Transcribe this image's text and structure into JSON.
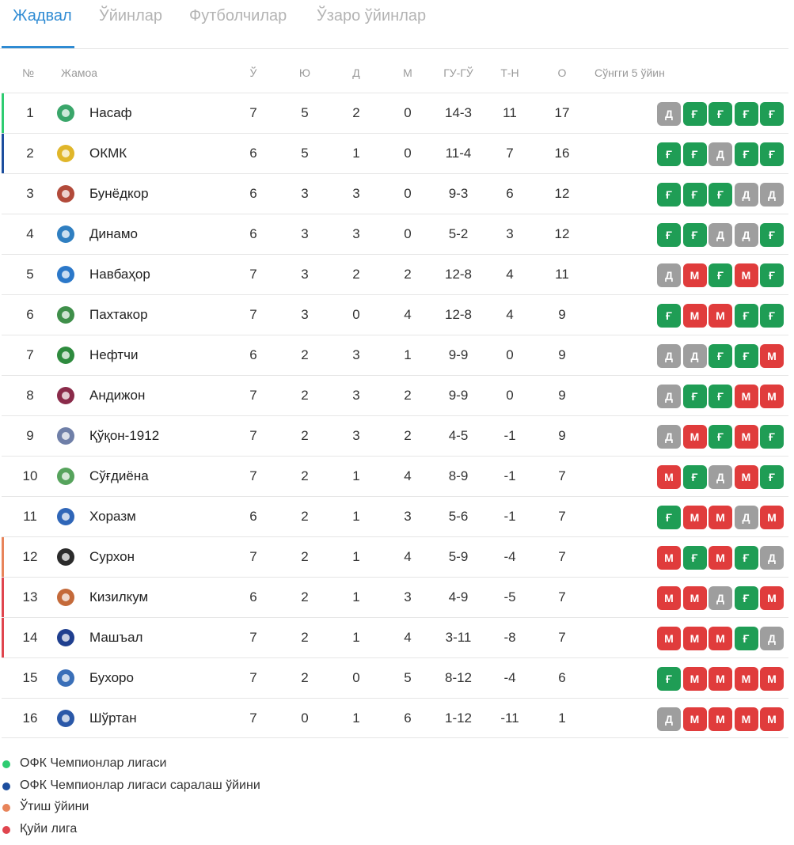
{
  "tabs": [
    {
      "label": "Жадвал",
      "active": true
    },
    {
      "label": "Ўйинлар",
      "active": false
    },
    {
      "label": "Футболчилар",
      "active": false
    },
    {
      "label": "Ўзаро ўйинлар",
      "active": false
    }
  ],
  "headers": {
    "pos": "№",
    "team": "Жамоа",
    "played": "Ў",
    "won": "Ю",
    "drawn": "Д",
    "lost": "М",
    "goals": "ГУ-ГЎ",
    "diff": "Т-Н",
    "points": "О",
    "form": "Сўнгги 5 ўйин"
  },
  "colors": {
    "win": "#1f9d55",
    "draw": "#9e9e9e",
    "loss": "#e03c3c",
    "cl": "#2ecc71",
    "cl_qual": "#1c4e9e",
    "playoff": "#e8845a",
    "relegation": "#e0454e",
    "accent": "#2f8bd3"
  },
  "form_letters": {
    "W": "Ғ",
    "D": "Д",
    "L": "М"
  },
  "rows": [
    {
      "pos": "1",
      "team": "Насаф",
      "p": "7",
      "w": "5",
      "d": "2",
      "l": "0",
      "gf": "14-3",
      "gd": "11",
      "pts": "17",
      "zone": "cl",
      "logo_color": "#3aa66a",
      "form": [
        "D",
        "W",
        "W",
        "W",
        "W"
      ]
    },
    {
      "pos": "2",
      "team": "ОКМК",
      "p": "6",
      "w": "5",
      "d": "1",
      "l": "0",
      "gf": "11-4",
      "gd": "7",
      "pts": "16",
      "zone": "cl_qual",
      "logo_color": "#e0b62a",
      "form": [
        "W",
        "W",
        "D",
        "W",
        "W"
      ]
    },
    {
      "pos": "3",
      "team": "Бунёдкор",
      "p": "6",
      "w": "3",
      "d": "3",
      "l": "0",
      "gf": "9-3",
      "gd": "6",
      "pts": "12",
      "zone": "",
      "logo_color": "#b24a3a",
      "form": [
        "W",
        "W",
        "W",
        "D",
        "D"
      ]
    },
    {
      "pos": "4",
      "team": "Динамо",
      "p": "6",
      "w": "3",
      "d": "3",
      "l": "0",
      "gf": "5-2",
      "gd": "3",
      "pts": "12",
      "zone": "",
      "logo_color": "#2f7fc1",
      "form": [
        "W",
        "W",
        "D",
        "D",
        "W"
      ]
    },
    {
      "pos": "5",
      "team": "Навбаҳор",
      "p": "7",
      "w": "3",
      "d": "2",
      "l": "2",
      "gf": "12-8",
      "gd": "4",
      "pts": "11",
      "zone": "",
      "logo_color": "#2b78c9",
      "form": [
        "D",
        "L",
        "W",
        "L",
        "W"
      ]
    },
    {
      "pos": "6",
      "team": "Пахтакор",
      "p": "7",
      "w": "3",
      "d": "0",
      "l": "4",
      "gf": "12-8",
      "gd": "4",
      "pts": "9",
      "zone": "",
      "logo_color": "#3f8f4a",
      "form": [
        "W",
        "L",
        "L",
        "W",
        "W"
      ]
    },
    {
      "pos": "7",
      "team": "Нефтчи",
      "p": "6",
      "w": "2",
      "d": "3",
      "l": "1",
      "gf": "9-9",
      "gd": "0",
      "pts": "9",
      "zone": "",
      "logo_color": "#2e8b3e",
      "form": [
        "D",
        "D",
        "W",
        "W",
        "L"
      ]
    },
    {
      "pos": "8",
      "team": "Андижон",
      "p": "7",
      "w": "2",
      "d": "3",
      "l": "2",
      "gf": "9-9",
      "gd": "0",
      "pts": "9",
      "zone": "",
      "logo_color": "#8a2b4a",
      "form": [
        "D",
        "W",
        "W",
        "L",
        "L"
      ]
    },
    {
      "pos": "9",
      "team": "Қўқон-1912",
      "p": "7",
      "w": "2",
      "d": "3",
      "l": "2",
      "gf": "4-5",
      "gd": "-1",
      "pts": "9",
      "zone": "",
      "logo_color": "#6f7fa8",
      "form": [
        "D",
        "L",
        "W",
        "L",
        "W"
      ]
    },
    {
      "pos": "10",
      "team": "Сўғдиёна",
      "p": "7",
      "w": "2",
      "d": "1",
      "l": "4",
      "gf": "8-9",
      "gd": "-1",
      "pts": "7",
      "zone": "",
      "logo_color": "#56a35c",
      "form": [
        "L",
        "W",
        "D",
        "L",
        "W"
      ]
    },
    {
      "pos": "11",
      "team": "Хоразм",
      "p": "6",
      "w": "2",
      "d": "1",
      "l": "3",
      "gf": "5-6",
      "gd": "-1",
      "pts": "7",
      "zone": "",
      "logo_color": "#2f66b8",
      "form": [
        "W",
        "L",
        "L",
        "D",
        "L"
      ]
    },
    {
      "pos": "12",
      "team": "Сурхон",
      "p": "7",
      "w": "2",
      "d": "1",
      "l": "4",
      "gf": "5-9",
      "gd": "-4",
      "pts": "7",
      "zone": "playoff",
      "logo_color": "#2b2b2b",
      "form": [
        "L",
        "W",
        "L",
        "W",
        "D"
      ]
    },
    {
      "pos": "13",
      "team": "Кизилкум",
      "p": "6",
      "w": "2",
      "d": "1",
      "l": "3",
      "gf": "4-9",
      "gd": "-5",
      "pts": "7",
      "zone": "relegation",
      "logo_color": "#c46a3a",
      "form": [
        "L",
        "L",
        "D",
        "W",
        "L"
      ]
    },
    {
      "pos": "14",
      "team": "Машъал",
      "p": "7",
      "w": "2",
      "d": "1",
      "l": "4",
      "gf": "3-11",
      "gd": "-8",
      "pts": "7",
      "zone": "relegation",
      "logo_color": "#1f3f8f",
      "form": [
        "L",
        "L",
        "L",
        "W",
        "D"
      ]
    },
    {
      "pos": "15",
      "team": "Бухоро",
      "p": "7",
      "w": "2",
      "d": "0",
      "l": "5",
      "gf": "8-12",
      "gd": "-4",
      "pts": "6",
      "zone": "",
      "logo_color": "#3a6fb8",
      "form": [
        "W",
        "L",
        "L",
        "L",
        "L"
      ]
    },
    {
      "pos": "16",
      "team": "Шўртан",
      "p": "7",
      "w": "0",
      "d": "1",
      "l": "6",
      "gf": "1-12",
      "gd": "-11",
      "pts": "1",
      "zone": "",
      "logo_color": "#2a58a8",
      "form": [
        "D",
        "L",
        "L",
        "L",
        "L"
      ]
    }
  ],
  "legend": [
    {
      "label": "ОФК Чемпионлар лигаси",
      "zone": "cl"
    },
    {
      "label": "ОФК Чемпионлар лигаси саралаш ўйини",
      "zone": "cl_qual"
    },
    {
      "label": "Ўтиш ўйини",
      "zone": "playoff"
    },
    {
      "label": "Қуйи лига",
      "zone": "relegation"
    }
  ]
}
